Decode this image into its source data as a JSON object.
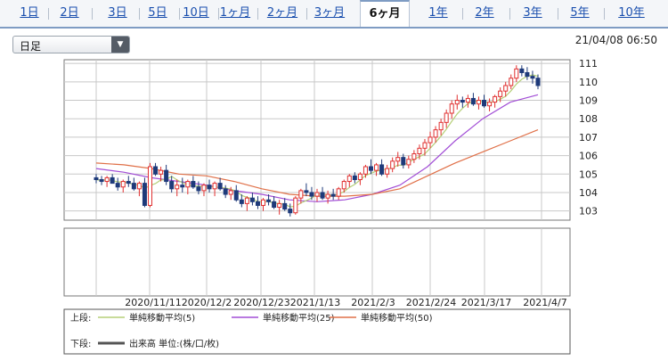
{
  "tabs": [
    {
      "label": "1日"
    },
    {
      "label": "2日"
    },
    {
      "label": "3日"
    },
    {
      "label": "5日"
    },
    {
      "label": "10日"
    },
    {
      "label": "1ヶ月"
    },
    {
      "label": "2ヶ月"
    },
    {
      "label": "3ヶ月"
    },
    {
      "label": "6ヶ月",
      "active": true
    },
    {
      "label": "1年"
    },
    {
      "label": "2年"
    },
    {
      "label": "3年"
    },
    {
      "label": "5年"
    },
    {
      "label": "10年"
    }
  ],
  "period_select": {
    "value": "日足"
  },
  "timestamp": "21/04/08 06:50",
  "chart_data": {
    "type": "candlestick",
    "y_ticks": [
      103,
      104,
      105,
      106,
      107,
      108,
      109,
      110,
      111
    ],
    "ylim": [
      102.5,
      111.2
    ],
    "x_tick_labels": [
      "2020/11/11",
      "2020/12/2",
      "2020/12/23",
      "2021/1/13",
      "2021/2/3",
      "2021/2/24",
      "2021/3/17",
      "2021/4/7"
    ],
    "grid": true,
    "legend": {
      "upper_label": "上段:",
      "lower_label": "下段:",
      "items": [
        {
          "name": "単純移動平均(5)",
          "color": "#b5cf78"
        },
        {
          "name": "単純移動平均(25)",
          "color": "#a24ed6"
        },
        {
          "name": "単純移動平均(50)",
          "color": "#e07048"
        }
      ],
      "volume_label": "出来高 単位:(株/口/枚)",
      "volume_color": "#555555"
    },
    "series": [
      {
        "name": "単純移動平均(25)",
        "points": [
          [
            0,
            105.3
          ],
          [
            15,
            105.1
          ],
          [
            30,
            104.8
          ],
          [
            45,
            104.6
          ],
          [
            60,
            104.4
          ],
          [
            75,
            104.1
          ],
          [
            90,
            103.9
          ],
          [
            105,
            103.6
          ],
          [
            120,
            103.5
          ],
          [
            135,
            103.6
          ],
          [
            150,
            103.9
          ],
          [
            165,
            104.4
          ],
          [
            180,
            105.4
          ],
          [
            195,
            106.8
          ],
          [
            210,
            108.0
          ],
          [
            225,
            108.9
          ],
          [
            240,
            109.3
          ]
        ]
      },
      {
        "name": "単純移動平均(50)",
        "points": [
          [
            0,
            105.6
          ],
          [
            15,
            105.5
          ],
          [
            30,
            105.3
          ],
          [
            45,
            105.0
          ],
          [
            60,
            104.9
          ],
          [
            75,
            104.6
          ],
          [
            90,
            104.2
          ],
          [
            105,
            103.9
          ],
          [
            120,
            103.8
          ],
          [
            135,
            103.8
          ],
          [
            150,
            103.9
          ],
          [
            165,
            104.2
          ],
          [
            180,
            104.9
          ],
          [
            195,
            105.6
          ],
          [
            210,
            106.2
          ],
          [
            225,
            106.8
          ],
          [
            240,
            107.4
          ]
        ]
      }
    ],
    "candles": [
      [
        104.8,
        105.0,
        104.5,
        104.7
      ],
      [
        104.7,
        104.9,
        104.4,
        104.6
      ],
      [
        104.6,
        104.9,
        104.3,
        104.8
      ],
      [
        104.8,
        105.0,
        104.5,
        104.5
      ],
      [
        104.5,
        104.8,
        104.1,
        104.3
      ],
      [
        104.3,
        104.7,
        104.0,
        104.6
      ],
      [
        104.6,
        104.9,
        104.3,
        104.5
      ],
      [
        104.5,
        104.8,
        104.1,
        104.2
      ],
      [
        104.2,
        104.6,
        103.8,
        104.5
      ],
      [
        104.5,
        104.8,
        103.2,
        103.3
      ],
      [
        103.3,
        105.6,
        103.2,
        105.4
      ],
      [
        105.4,
        105.6,
        104.9,
        105.0
      ],
      [
        105.0,
        105.4,
        104.6,
        105.2
      ],
      [
        105.2,
        105.5,
        104.4,
        104.6
      ],
      [
        104.6,
        104.9,
        104.0,
        104.2
      ],
      [
        104.2,
        104.7,
        103.8,
        104.4
      ],
      [
        104.4,
        104.8,
        104.0,
        104.3
      ],
      [
        104.3,
        104.7,
        103.9,
        104.6
      ],
      [
        104.6,
        104.9,
        104.2,
        104.3
      ],
      [
        104.3,
        104.6,
        103.9,
        104.1
      ],
      [
        104.1,
        104.5,
        103.8,
        104.4
      ],
      [
        104.4,
        104.7,
        104.0,
        104.2
      ],
      [
        104.2,
        104.6,
        103.8,
        104.5
      ],
      [
        104.5,
        104.8,
        104.1,
        104.2
      ],
      [
        104.2,
        104.4,
        103.7,
        103.9
      ],
      [
        103.9,
        104.3,
        103.6,
        104.1
      ],
      [
        104.1,
        104.4,
        103.5,
        103.6
      ],
      [
        103.6,
        103.9,
        103.2,
        103.4
      ],
      [
        103.4,
        103.8,
        103.0,
        103.7
      ],
      [
        103.7,
        104.0,
        103.3,
        103.5
      ],
      [
        103.5,
        103.8,
        103.1,
        103.3
      ],
      [
        103.3,
        103.7,
        103.0,
        103.6
      ],
      [
        103.6,
        103.9,
        103.3,
        103.5
      ],
      [
        103.5,
        103.8,
        103.1,
        103.2
      ],
      [
        103.2,
        103.6,
        102.8,
        103.4
      ],
      [
        103.4,
        103.7,
        103.0,
        103.1
      ],
      [
        103.1,
        103.4,
        102.7,
        102.9
      ],
      [
        102.9,
        103.8,
        102.8,
        103.7
      ],
      [
        103.7,
        104.2,
        103.4,
        104.1
      ],
      [
        104.1,
        104.5,
        103.8,
        104.0
      ],
      [
        104.0,
        104.3,
        103.6,
        103.8
      ],
      [
        103.8,
        104.2,
        103.5,
        104.0
      ],
      [
        104.0,
        104.3,
        103.6,
        103.7
      ],
      [
        103.7,
        104.1,
        103.4,
        103.9
      ],
      [
        103.9,
        104.2,
        103.6,
        103.8
      ],
      [
        103.8,
        104.3,
        103.6,
        104.2
      ],
      [
        104.2,
        104.7,
        104.0,
        104.6
      ],
      [
        104.6,
        105.0,
        104.3,
        104.9
      ],
      [
        104.9,
        105.1,
        104.5,
        104.7
      ],
      [
        104.7,
        105.1,
        104.4,
        105.0
      ],
      [
        105.0,
        105.5,
        104.8,
        105.4
      ],
      [
        105.4,
        105.8,
        105.0,
        105.2
      ],
      [
        105.2,
        105.6,
        104.9,
        105.5
      ],
      [
        105.5,
        105.8,
        104.9,
        105.0
      ],
      [
        105.0,
        105.5,
        104.8,
        105.3
      ],
      [
        105.3,
        105.9,
        105.1,
        105.7
      ],
      [
        105.7,
        106.2,
        105.4,
        105.9
      ],
      [
        105.9,
        106.1,
        105.3,
        105.5
      ],
      [
        105.5,
        106.0,
        105.3,
        105.8
      ],
      [
        105.8,
        106.3,
        105.6,
        106.1
      ],
      [
        106.1,
        106.6,
        105.8,
        106.4
      ],
      [
        106.4,
        106.9,
        106.0,
        106.7
      ],
      [
        106.7,
        107.3,
        106.4,
        107.0
      ],
      [
        107.0,
        107.6,
        106.7,
        107.4
      ],
      [
        107.4,
        108.0,
        107.1,
        107.8
      ],
      [
        107.8,
        108.5,
        107.5,
        108.3
      ],
      [
        108.3,
        109.0,
        108.0,
        108.8
      ],
      [
        108.8,
        109.3,
        108.5,
        109.0
      ],
      [
        109.0,
        109.2,
        108.6,
        108.9
      ],
      [
        108.9,
        109.3,
        108.6,
        109.1
      ],
      [
        109.1,
        109.4,
        108.7,
        108.8
      ],
      [
        108.8,
        109.2,
        108.5,
        109.0
      ],
      [
        109.0,
        109.3,
        108.6,
        108.7
      ],
      [
        108.7,
        109.1,
        108.4,
        108.9
      ],
      [
        108.9,
        109.3,
        108.6,
        109.2
      ],
      [
        109.2,
        109.7,
        108.9,
        109.5
      ],
      [
        109.5,
        110.0,
        109.2,
        109.8
      ],
      [
        109.8,
        110.4,
        109.6,
        110.2
      ],
      [
        110.2,
        110.9,
        110.0,
        110.7
      ],
      [
        110.7,
        110.9,
        110.3,
        110.5
      ],
      [
        110.5,
        110.8,
        110.1,
        110.3
      ],
      [
        110.3,
        110.6,
        109.9,
        110.2
      ],
      [
        110.2,
        110.4,
        109.6,
        109.8
      ]
    ]
  }
}
